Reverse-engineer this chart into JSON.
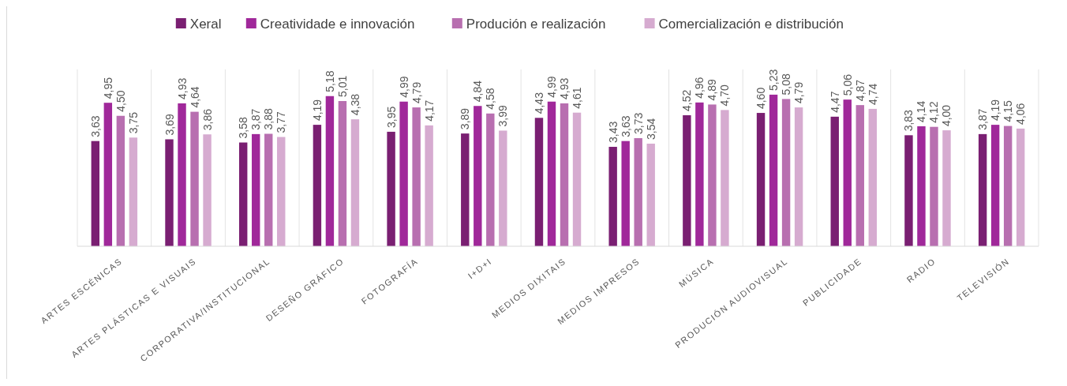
{
  "chart_data": {
    "type": "bar",
    "categories": [
      "ARTES ESCÉNICAS",
      "ARTES PLÁSTICAS E VISUAIS",
      "CORPORATIVA/INSTITUCIONAL",
      "DESEÑO GRÁFICO",
      "FOTOGRAFÍA",
      "I+D+I",
      "MEDIOS DIXITAIS",
      "MEDIOS IMPRESOS",
      "MÚSICA",
      "PRODUCIÓN AUDIOVISUAL",
      "PUBLICIDADE",
      "RADIO",
      "TELEVISIÓN"
    ],
    "series": [
      {
        "name": "Xeral",
        "color": "#7a1f72",
        "values": [
          3.63,
          3.69,
          3.58,
          4.19,
          3.95,
          3.89,
          4.43,
          3.43,
          4.52,
          4.6,
          4.47,
          3.83,
          3.87
        ],
        "value_labels": [
          "3,63",
          "3,69",
          "3,58",
          "4,19",
          "3,95",
          "3,89",
          "4,43",
          "3,43",
          "4,52",
          "4,60",
          "4,47",
          "3,83",
          "3,87"
        ]
      },
      {
        "name": "Creatividade e innovación",
        "color": "#a0289a",
        "values": [
          4.95,
          4.93,
          3.87,
          5.18,
          4.99,
          4.84,
          4.99,
          3.63,
          4.96,
          5.23,
          5.06,
          4.14,
          4.19
        ],
        "value_labels": [
          "4,95",
          "4,93",
          "3,87",
          "5,18",
          "4,99",
          "4,84",
          "4,99",
          "3,63",
          "4,96",
          "5,23",
          "5,06",
          "4,14",
          "4,19"
        ]
      },
      {
        "name": "Produción e realización",
        "color": "#b86fb0",
        "values": [
          4.5,
          4.64,
          3.88,
          5.01,
          4.79,
          4.58,
          4.93,
          3.73,
          4.89,
          5.08,
          4.87,
          4.12,
          4.15
        ],
        "value_labels": [
          "4,50",
          "4,64",
          "3,88",
          "5,01",
          "4,79",
          "4,58",
          "4,93",
          "3,73",
          "4,89",
          "5,08",
          "4,87",
          "4,12",
          "4,15"
        ]
      },
      {
        "name": "Comercialización e distribución",
        "color": "#d6abd0",
        "values": [
          3.75,
          3.86,
          3.77,
          4.38,
          4.17,
          3.99,
          4.61,
          3.54,
          4.7,
          4.79,
          4.74,
          4.0,
          4.06
        ],
        "value_labels": [
          "3,75",
          "3,86",
          "3,77",
          "4,38",
          "4,17",
          "3,99",
          "4,61",
          "3,54",
          "4,70",
          "4,79",
          "4,74",
          "4,00",
          "4,06"
        ]
      }
    ],
    "legend": "top",
    "grid": "x"
  }
}
